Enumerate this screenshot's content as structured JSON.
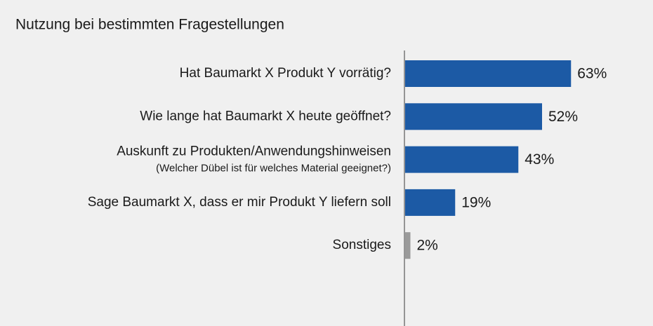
{
  "chart_data": {
    "type": "bar",
    "orientation": "horizontal",
    "title": "Nutzung bei bestimmten Fragestellungen",
    "categories": [
      "Hat Baumarkt X Produkt Y vorrätig?",
      "Wie lange hat Baumarkt X heute geöffnet?",
      "Auskunft zu Produkten/Anwendungshinweisen",
      "Sage Baumarkt X, dass er mir Produkt Y liefern soll",
      "Sonstiges"
    ],
    "category_sublabels": [
      null,
      null,
      "(Welcher Dübel ist für welches Material geeignet?)",
      null,
      null
    ],
    "values": [
      63,
      52,
      43,
      19,
      2
    ],
    "value_labels": [
      "63%",
      "52%",
      "43%",
      "19%",
      "2%"
    ],
    "colors": [
      "#1c5aa5",
      "#1c5aa5",
      "#1c5aa5",
      "#1c5aa5",
      "#9a9a9a"
    ],
    "xlim": [
      0,
      100
    ]
  }
}
